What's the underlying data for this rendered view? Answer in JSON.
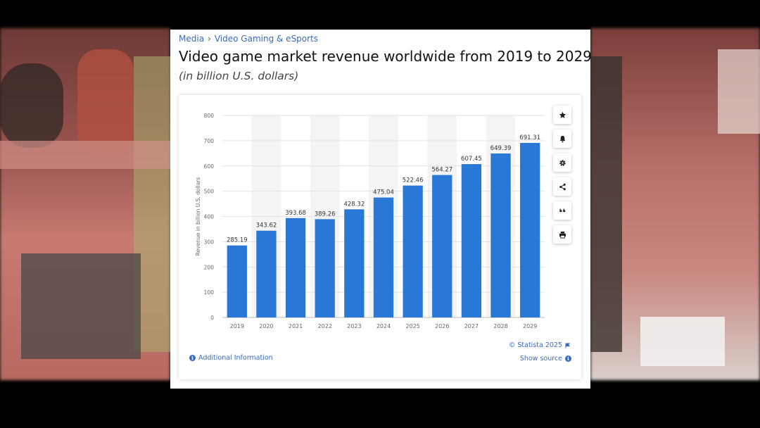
{
  "breadcrumb": {
    "parent": "Media",
    "separator": "›",
    "current": "Video Gaming & eSports"
  },
  "title": "Video game market revenue worldwide from 2019 to 2029",
  "subtitle": "(in billion U.S. dollars)",
  "toolbar": {
    "icons": [
      "star-icon",
      "bell-icon",
      "gear-icon",
      "share-icon",
      "quote-icon",
      "print-icon"
    ]
  },
  "footer": {
    "additional_info": "Additional Information",
    "copyright": "© Statista 2025",
    "show_source": "Show source"
  },
  "colors": {
    "bar": "#2a78d6",
    "link": "#3a6ab8"
  },
  "chart_data": {
    "type": "bar",
    "categories": [
      "2019",
      "2020",
      "2021",
      "2022",
      "2023",
      "2024",
      "2025",
      "2026",
      "2027",
      "2028",
      "2029"
    ],
    "values": [
      285.19,
      343.62,
      393.68,
      389.26,
      428.32,
      475.04,
      522.46,
      564.27,
      607.45,
      649.39,
      691.31
    ],
    "labels": [
      "285.19",
      "343.62",
      "393.68",
      "389.26",
      "428.32",
      "475.04",
      "522.46",
      "564.27",
      "607.45",
      "649.39",
      "691.31"
    ],
    "title": "Video game market revenue worldwide from 2019 to 2029",
    "xlabel": "",
    "ylabel": "Revenue in billion U.S. dollars",
    "ylim": [
      0,
      800
    ],
    "yticks": [
      0,
      100,
      200,
      300,
      400,
      500,
      600,
      700,
      800
    ],
    "grid": true,
    "legend": "none"
  }
}
